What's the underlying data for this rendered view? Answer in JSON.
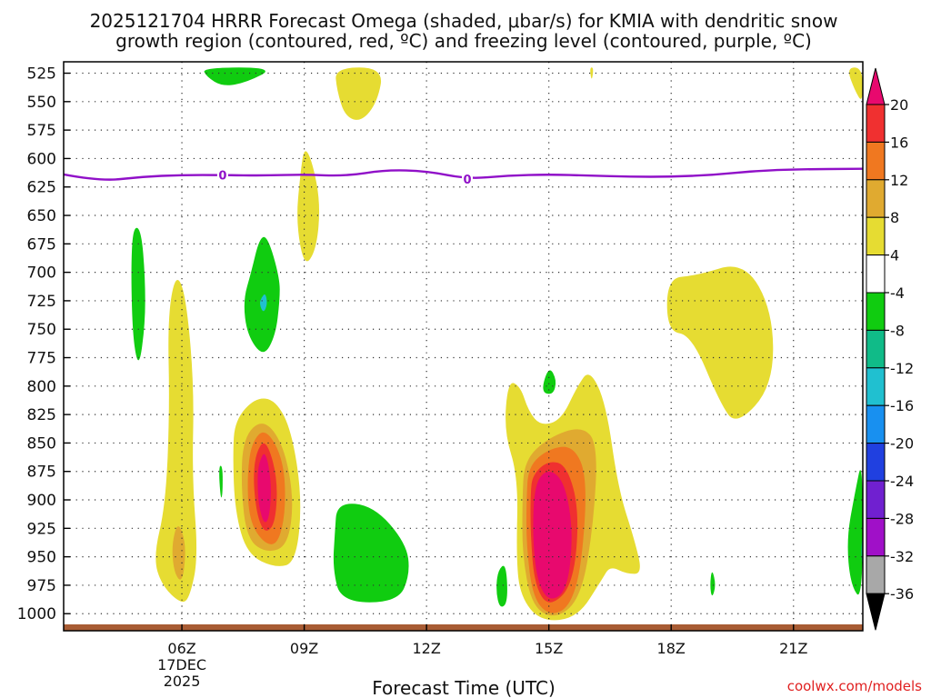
{
  "chart_data": {
    "type": "heatmap",
    "title_line1": "2025121704 HRRR Forecast Omega (shaded, μbar/s) for KMIA with dendritic snow",
    "title_line2": "growth region (contoured, red, ºC) and freezing level (contoured, purple, ºC)",
    "xlabel": "Forecast Time (UTC)",
    "credit": "coolwx.com/models",
    "x_range_hours": [
      3.1,
      22.7
    ],
    "y_range_mb": [
      515,
      1015
    ],
    "y_ticks": [
      "525",
      "550",
      "575",
      "600",
      "625",
      "650",
      "675",
      "700",
      "725",
      "750",
      "775",
      "800",
      "825",
      "850",
      "875",
      "900",
      "925",
      "950",
      "975",
      "1000"
    ],
    "x_ticks": [
      {
        "hour": 6,
        "label": "06Z",
        "sub1": "17DEC",
        "sub2": "2025"
      },
      {
        "hour": 9,
        "label": "09Z"
      },
      {
        "hour": 12,
        "label": "12Z"
      },
      {
        "hour": 15,
        "label": "15Z"
      },
      {
        "hour": 18,
        "label": "18Z"
      },
      {
        "hour": 21,
        "label": "21Z"
      }
    ],
    "colorbar": {
      "labels": [
        "20",
        "16",
        "12",
        "8",
        "4",
        "-4",
        "-8",
        "-12",
        "-16",
        "-20",
        "-24",
        "-28",
        "-32",
        "-36"
      ],
      "colors": [
        "#e8096e",
        "#f03030",
        "#f07820",
        "#e0aa30",
        "#e6dc32",
        "#ffffff",
        "#10cc10",
        "#10bb88",
        "#20c0d0",
        "#1890f0",
        "#2040e0",
        "#7020d0",
        "#a010c8",
        "#a8a8a8",
        "#000000"
      ]
    },
    "freezing_level": {
      "label": "0",
      "color": "#9010c8",
      "points": [
        [
          3.1,
          614
        ],
        [
          4.0,
          620
        ],
        [
          5.0,
          616
        ],
        [
          6.0,
          614.5
        ],
        [
          7.0,
          614.5
        ],
        [
          8.0,
          615
        ],
        [
          9.0,
          614
        ],
        [
          10.0,
          615.5
        ],
        [
          11.0,
          610
        ],
        [
          12.0,
          611
        ],
        [
          13.0,
          618
        ],
        [
          14.0,
          615
        ],
        [
          15.0,
          614
        ],
        [
          16.0,
          615
        ],
        [
          17.0,
          616
        ],
        [
          18.0,
          616
        ],
        [
          19.0,
          614.5
        ],
        [
          20.0,
          611
        ],
        [
          21.0,
          609.5
        ],
        [
          22.7,
          609
        ]
      ],
      "label_hours": [
        7.0,
        13.0
      ]
    },
    "ground": {
      "color": "#a85c34",
      "label": "terrain"
    },
    "omega_features": [
      {
        "name": "omega-neg-0700-upper",
        "color": "#10cc10",
        "value": -4,
        "points": [
          [
            6.5,
            520
          ],
          [
            8.3,
            520
          ],
          [
            7.6,
            533
          ],
          [
            7.0,
            537
          ],
          [
            6.6,
            528
          ]
        ]
      },
      {
        "name": "omega-neg-0800-mid",
        "color": "#10cc10",
        "value": -4,
        "points": [
          [
            7.9,
            670
          ],
          [
            8.1,
            668
          ],
          [
            8.4,
            705
          ],
          [
            8.4,
            725
          ],
          [
            8.3,
            755
          ],
          [
            8.0,
            775
          ],
          [
            7.6,
            755
          ],
          [
            7.5,
            725
          ],
          [
            7.7,
            700
          ]
        ]
      },
      {
        "name": "omega-neg-0800-core",
        "color": "#20c0d0",
        "value": -12,
        "points": [
          [
            7.95,
            722
          ],
          [
            8.05,
            718
          ],
          [
            8.1,
            728
          ],
          [
            8.0,
            736
          ],
          [
            7.9,
            728
          ]
        ]
      },
      {
        "name": "omega-neg-0500-mid",
        "color": "#10cc10",
        "value": -4,
        "points": [
          [
            4.8,
            660
          ],
          [
            5.0,
            662
          ],
          [
            5.1,
            705
          ],
          [
            5.1,
            745
          ],
          [
            4.95,
            785
          ],
          [
            4.8,
            760
          ],
          [
            4.75,
            700
          ]
        ]
      },
      {
        "name": "omega-neg-0700-low",
        "color": "#10cc10",
        "value": -4,
        "points": [
          [
            6.9,
            870
          ],
          [
            7.0,
            870
          ],
          [
            7.0,
            895
          ],
          [
            6.95,
            900
          ]
        ]
      },
      {
        "name": "omega-neg-1000-low",
        "color": "#10cc10",
        "value": -4,
        "points": [
          [
            9.8,
            902
          ],
          [
            10.7,
            905
          ],
          [
            11.5,
            938
          ],
          [
            11.6,
            965
          ],
          [
            11.3,
            990
          ],
          [
            9.9,
            990
          ],
          [
            9.7,
            960
          ],
          [
            9.75,
            930
          ]
        ]
      },
      {
        "name": "omega-neg-1400-low",
        "color": "#10cc10",
        "value": -4,
        "points": [
          [
            13.75,
            962
          ],
          [
            13.95,
            955
          ],
          [
            14.0,
            990
          ],
          [
            13.8,
            996
          ],
          [
            13.7,
            980
          ]
        ]
      },
      {
        "name": "omega-neg-1500-mid",
        "color": "#10cc10",
        "value": -4,
        "points": [
          [
            15.0,
            782
          ],
          [
            15.2,
            795
          ],
          [
            15.1,
            808
          ],
          [
            14.8,
            805
          ]
        ]
      },
      {
        "name": "omega-neg-1900-low",
        "color": "#10cc10",
        "value": -4,
        "points": [
          [
            19.0,
            960
          ],
          [
            19.1,
            975
          ],
          [
            19.0,
            987
          ],
          [
            18.95,
            975
          ]
        ]
      },
      {
        "name": "omega-neg-2200-low",
        "color": "#10cc10",
        "value": -4,
        "points": [
          [
            22.7,
            860
          ],
          [
            22.7,
            990
          ],
          [
            22.4,
            975
          ],
          [
            22.3,
            935
          ],
          [
            22.5,
            895
          ]
        ]
      },
      {
        "name": "omega-neg-2200-core",
        "color": "#10bb88",
        "value": -8,
        "points": [
          [
            22.7,
            930
          ],
          [
            22.65,
            945
          ],
          [
            22.7,
            960
          ]
        ]
      },
      {
        "name": "omega-pos-1000-upper",
        "color": "#e6dc32",
        "value": 4,
        "points": [
          [
            9.75,
            520
          ],
          [
            10.95,
            520
          ],
          [
            10.8,
            550
          ],
          [
            10.4,
            568
          ],
          [
            10.0,
            563
          ],
          [
            9.8,
            540
          ]
        ]
      },
      {
        "name": "omega-pos-0900-upper",
        "color": "#e6dc32",
        "value": 4,
        "points": [
          [
            9.0,
            589
          ],
          [
            9.2,
            603
          ],
          [
            9.4,
            640
          ],
          [
            9.3,
            680
          ],
          [
            9.0,
            696
          ],
          [
            8.8,
            655
          ],
          [
            8.9,
            615
          ]
        ]
      },
      {
        "name": "omega-pos-1600-upper",
        "color": "#e6dc32",
        "value": 4,
        "points": [
          [
            16.0,
            520
          ],
          [
            16.1,
            520
          ],
          [
            16.05,
            533
          ]
        ]
      },
      {
        "name": "omega-pos-2200-upper",
        "color": "#e6dc32",
        "value": 4,
        "points": [
          [
            22.3,
            520
          ],
          [
            22.7,
            520
          ],
          [
            22.7,
            552
          ],
          [
            22.5,
            540
          ]
        ]
      },
      {
        "name": "omega-pos-0600-column",
        "color": "#e6dc32",
        "value": 4,
        "points": [
          [
            5.85,
            700
          ],
          [
            6.1,
            720
          ],
          [
            6.3,
            800
          ],
          [
            6.25,
            880
          ],
          [
            6.4,
            950
          ],
          [
            6.2,
            985
          ],
          [
            6.0,
            992
          ],
          [
            5.5,
            975
          ],
          [
            5.3,
            950
          ],
          [
            5.6,
            905
          ],
          [
            5.7,
            820
          ],
          [
            5.65,
            740
          ]
        ]
      },
      {
        "name": "omega-pos-0600-core",
        "color": "#e0aa30",
        "value": 8,
        "points": [
          [
            5.9,
            918
          ],
          [
            6.1,
            938
          ],
          [
            6.05,
            965
          ],
          [
            5.95,
            972
          ],
          [
            5.8,
            962
          ],
          [
            5.75,
            940
          ]
        ]
      },
      {
        "name": "omega-pos-0800-low",
        "color": "#e6dc32",
        "value": 4,
        "points": [
          [
            7.3,
            830
          ],
          [
            7.8,
            810
          ],
          [
            8.3,
            812
          ],
          [
            8.7,
            840
          ],
          [
            8.95,
            900
          ],
          [
            8.8,
            955
          ],
          [
            8.3,
            960
          ],
          [
            7.6,
            948
          ],
          [
            7.3,
            910
          ],
          [
            7.25,
            860
          ]
        ]
      },
      {
        "name": "omega-pos-0800-c1",
        "color": "#e0aa30",
        "value": 8,
        "points": [
          [
            7.5,
            845
          ],
          [
            8.0,
            828
          ],
          [
            8.5,
            852
          ],
          [
            8.75,
            900
          ],
          [
            8.6,
            940
          ],
          [
            8.1,
            947
          ],
          [
            7.6,
            935
          ],
          [
            7.45,
            890
          ]
        ]
      },
      {
        "name": "omega-pos-0800-c2",
        "color": "#f07820",
        "value": 12,
        "points": [
          [
            7.7,
            850
          ],
          [
            8.05,
            836
          ],
          [
            8.5,
            865
          ],
          [
            8.55,
            910
          ],
          [
            8.35,
            940
          ],
          [
            8.0,
            938
          ],
          [
            7.65,
            918
          ],
          [
            7.6,
            880
          ]
        ]
      },
      {
        "name": "omega-pos-0800-c3",
        "color": "#f03030",
        "value": 16,
        "points": [
          [
            7.8,
            860
          ],
          [
            8.05,
            845
          ],
          [
            8.35,
            880
          ],
          [
            8.3,
            920
          ],
          [
            8.05,
            930
          ],
          [
            7.85,
            915
          ],
          [
            7.75,
            885
          ]
        ]
      },
      {
        "name": "omega-pos-0800-core",
        "color": "#e8096e",
        "value": 20,
        "points": [
          [
            7.9,
            866
          ],
          [
            8.05,
            856
          ],
          [
            8.2,
            885
          ],
          [
            8.15,
            915
          ],
          [
            8.02,
            922
          ],
          [
            7.88,
            905
          ],
          [
            7.85,
            880
          ]
        ]
      },
      {
        "name": "omega-pos-1800-mid",
        "color": "#e6dc32",
        "value": 4,
        "points": [
          [
            17.9,
            705
          ],
          [
            18.6,
            703
          ],
          [
            19.8,
            690
          ],
          [
            20.5,
            735
          ],
          [
            20.5,
            800
          ],
          [
            19.6,
            835
          ],
          [
            19.2,
            815
          ],
          [
            18.5,
            755
          ],
          [
            17.9,
            752
          ]
        ]
      },
      {
        "name": "omega-pos-1500-low",
        "color": "#e6dc32",
        "value": 4,
        "points": [
          [
            14.0,
            795
          ],
          [
            14.3,
            800
          ],
          [
            14.5,
            822
          ],
          [
            14.8,
            835
          ],
          [
            15.3,
            830
          ],
          [
            15.7,
            800
          ],
          [
            16.0,
            785
          ],
          [
            16.4,
            815
          ],
          [
            16.7,
            890
          ],
          [
            17.1,
            935
          ],
          [
            17.3,
            965
          ],
          [
            16.9,
            965
          ],
          [
            16.5,
            958
          ],
          [
            16.3,
            970
          ],
          [
            15.7,
            1004
          ],
          [
            14.8,
            1007
          ],
          [
            14.3,
            985
          ],
          [
            14.2,
            950
          ],
          [
            14.25,
            880
          ],
          [
            13.9,
            840
          ]
        ]
      },
      {
        "name": "omega-pos-1500-c1",
        "color": "#e0aa30",
        "value": 8,
        "points": [
          [
            14.4,
            865
          ],
          [
            15.0,
            845
          ],
          [
            15.8,
            835
          ],
          [
            16.2,
            850
          ],
          [
            16.1,
            920
          ],
          [
            15.8,
            985
          ],
          [
            15.2,
            1005
          ],
          [
            14.6,
            995
          ],
          [
            14.35,
            950
          ],
          [
            14.35,
            900
          ]
        ]
      },
      {
        "name": "omega-pos-1500-c2",
        "color": "#f07820",
        "value": 12,
        "points": [
          [
            14.5,
            870
          ],
          [
            15.0,
            855
          ],
          [
            15.6,
            852
          ],
          [
            15.95,
            880
          ],
          [
            15.8,
            960
          ],
          [
            15.5,
            995
          ],
          [
            15.0,
            1002
          ],
          [
            14.6,
            985
          ],
          [
            14.45,
            940
          ],
          [
            14.45,
            900
          ]
        ]
      },
      {
        "name": "omega-pos-1500-c3",
        "color": "#f03030",
        "value": 16,
        "points": [
          [
            14.6,
            878
          ],
          [
            15.0,
            865
          ],
          [
            15.45,
            870
          ],
          [
            15.75,
            910
          ],
          [
            15.6,
            975
          ],
          [
            15.0,
            995
          ],
          [
            14.65,
            975
          ],
          [
            14.55,
            930
          ],
          [
            14.55,
            895
          ]
        ]
      },
      {
        "name": "omega-pos-1500-core",
        "color": "#e8096e",
        "value": 20,
        "points": [
          [
            14.65,
            885
          ],
          [
            15.0,
            872
          ],
          [
            15.4,
            885
          ],
          [
            15.6,
            930
          ],
          [
            15.45,
            980
          ],
          [
            15.0,
            990
          ],
          [
            14.7,
            970
          ],
          [
            14.6,
            930
          ]
        ]
      }
    ]
  }
}
